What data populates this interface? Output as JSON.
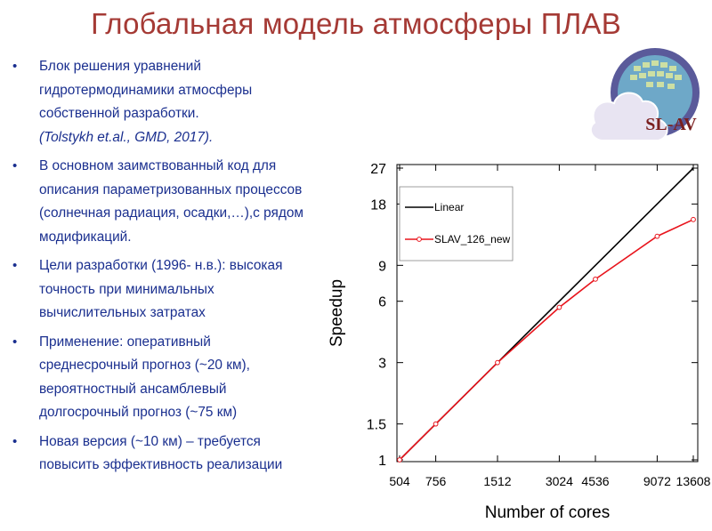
{
  "title": "Глобальная модель атмосферы ПЛАВ",
  "bullets": [
    {
      "text": "Блок решения уравнений гидротермодинамики атмосферы собственной разработки.",
      "ref": "(Tolstykh et.al., GMD, 2017)."
    },
    {
      "text": "В основном заимствованный код для описания параметризованных процессов (солнечная радиация, осадки,…),с рядом модификаций."
    },
    {
      "text": "Цели разработки (1996- н.в.): высокая точность при минимальных вычислительных затратах"
    },
    {
      "text": "Применение: оперативный среднесрочный прогноз (~20 км), вероятностный ансамблевый долгосрочный прогноз (~75 км)"
    },
    {
      "text": "Новая версия (~10 км) – требуется повысить эффективность реализации"
    }
  ],
  "bullet_marker": "•",
  "logo": {
    "text": "SL-AV",
    "colors": {
      "ring": "#5a5a9a",
      "globe": "#6ea8c8",
      "cloud": "#e8e4f2",
      "text": "#7a1f1f"
    }
  },
  "colors": {
    "title": "#a53a35",
    "bullet_text": "#1a2f8f",
    "linear": "#000000",
    "slav": "#e8141c"
  },
  "chart_data": {
    "type": "line",
    "xlabel": "Number of cores",
    "ylabel": "Speedup",
    "x_scale": "log",
    "y_scale": "log",
    "x_ticks": [
      504,
      756,
      1512,
      3024,
      4536,
      9072,
      13608
    ],
    "y_ticks": [
      1,
      1.5,
      3,
      6,
      9,
      18,
      27
    ],
    "xlim": [
      504,
      13608
    ],
    "ylim": [
      1,
      27
    ],
    "grid": false,
    "legend_position": "top-left",
    "series": [
      {
        "name": "Linear",
        "x": [
          504,
          13608
        ],
        "y": [
          1,
          27
        ],
        "color": "#000000",
        "markers": false
      },
      {
        "name": "SLAV_126_new",
        "x": [
          504,
          756,
          1512,
          3024,
          4536,
          9072,
          13608
        ],
        "y": [
          1,
          1.5,
          3,
          5.6,
          7.7,
          12.5,
          15.1
        ],
        "color": "#e8141c",
        "markers": true
      }
    ]
  }
}
